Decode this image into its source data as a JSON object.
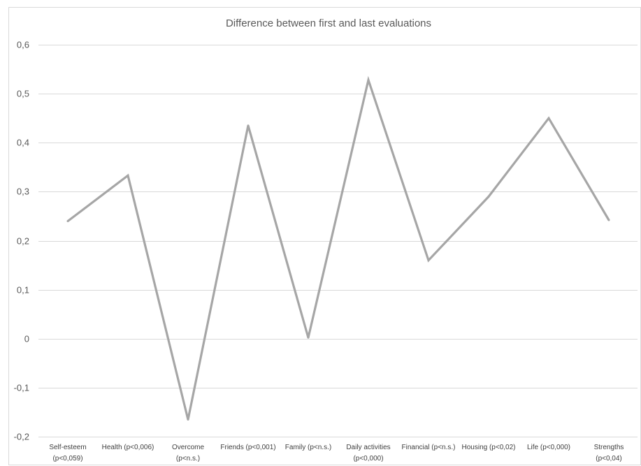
{
  "chart_data": {
    "type": "line",
    "title": "Difference between first and last evaluations",
    "xlabel": "",
    "ylabel": "",
    "ylim": [
      -0.2,
      0.6
    ],
    "yticks": [
      "-0,2",
      "-0,1",
      "0",
      "0,1",
      "0,2",
      "0,3",
      "0,4",
      "0,5",
      "0,6"
    ],
    "grid": true,
    "legend": "none",
    "colors": {
      "series": "#a6a6a6",
      "grid": "#d9d9d9",
      "text": "#595959"
    },
    "categories": [
      [
        "Self-esteem",
        "(p<0,059)"
      ],
      [
        "Health (p<0,006)"
      ],
      [
        "Overcome",
        "(p<n.s.)"
      ],
      [
        "Friends (p<0,001)"
      ],
      [
        "Family (p<n.s.)"
      ],
      [
        "Daily activities",
        "(p<0,000)"
      ],
      [
        "Financial (p<n.s.)"
      ],
      [
        "Housing (p<0,02)"
      ],
      [
        "Life (p<0,000)"
      ],
      [
        "Strengths",
        "(p<0,04)"
      ]
    ],
    "series": [
      {
        "values": [
          0.24,
          0.333,
          -0.165,
          0.435,
          0.002,
          0.528,
          0.16,
          0.29,
          0.45,
          0.242
        ]
      }
    ]
  }
}
